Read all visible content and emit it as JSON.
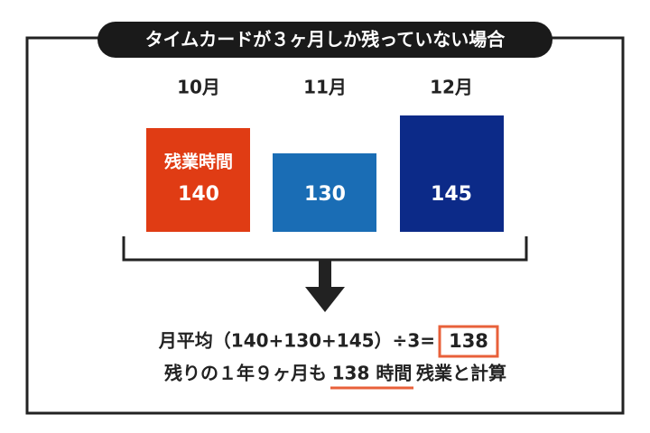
{
  "title": "タイムカードが３ヶ月しか残っていない場合",
  "months": [
    {
      "label": "10月",
      "box_label": "残業時間",
      "hours": 140
    },
    {
      "label": "11月",
      "hours": 130
    },
    {
      "label": "12月",
      "hours": 145
    }
  ],
  "formula": {
    "text": "月平均（140+130+145）÷3=",
    "result": 138
  },
  "conclusion": {
    "before": "残りの１年９ヶ月も",
    "highlight": "138 時間",
    "after": "残業と計算"
  }
}
